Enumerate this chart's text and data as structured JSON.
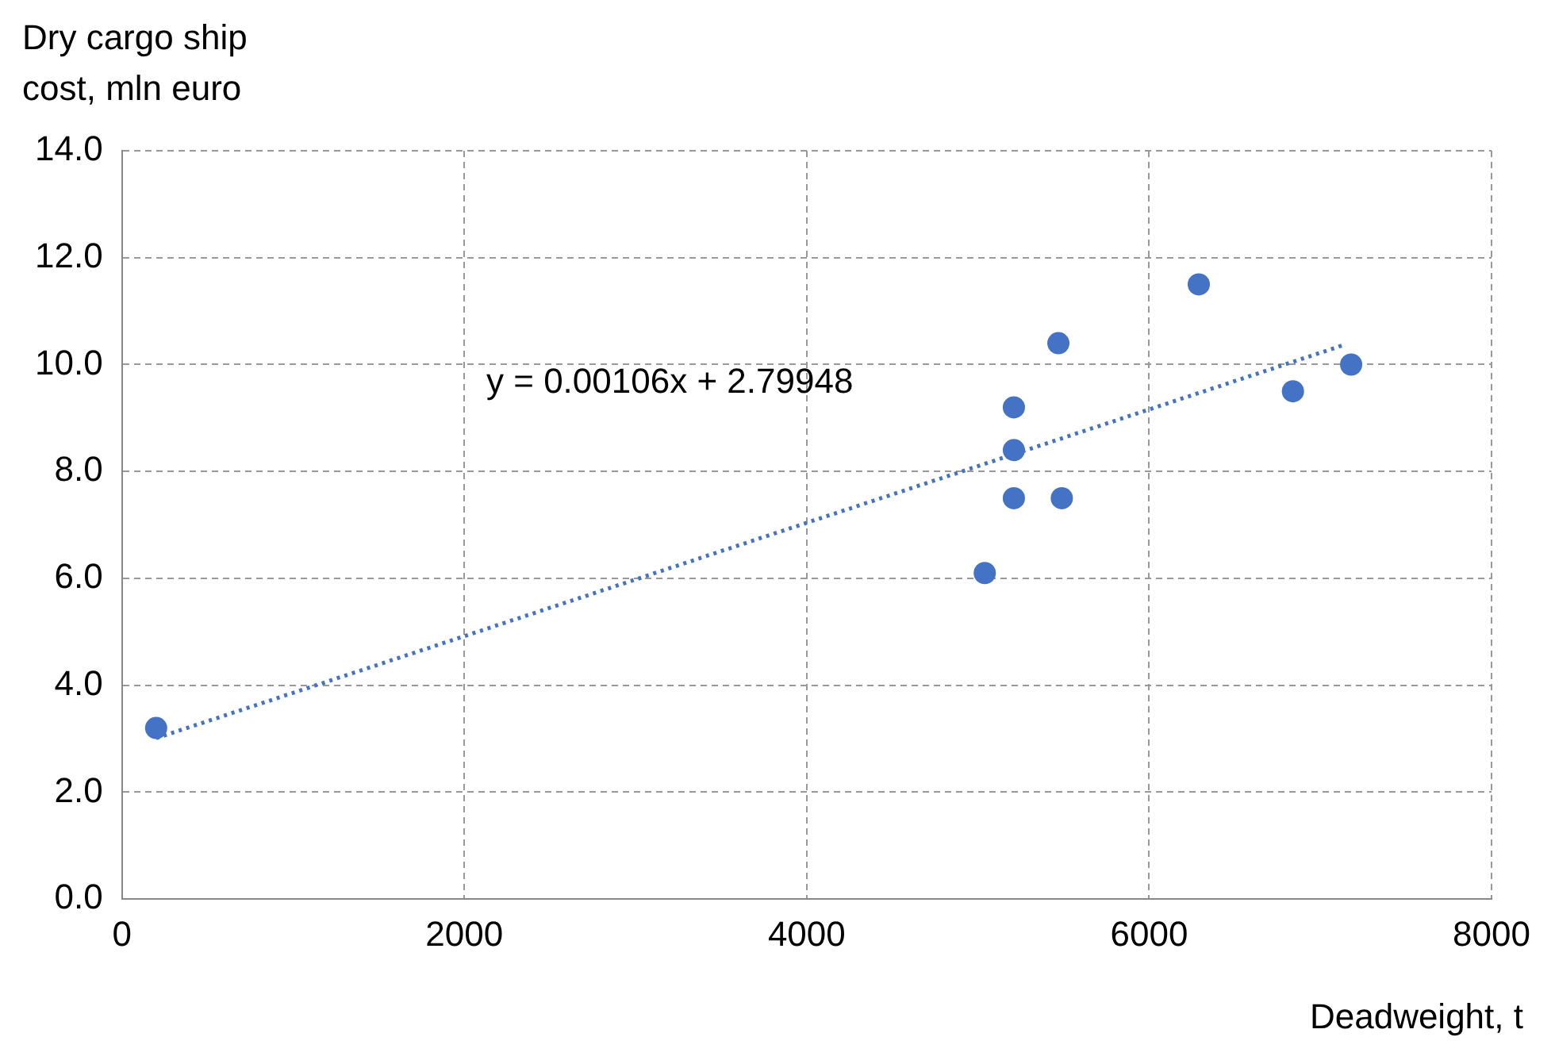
{
  "chart_data": {
    "type": "scatter",
    "ylabel": "Dry cargo ship cost, mln euro",
    "xlabel": "Deadweight, t",
    "xlim": [
      0,
      8000
    ],
    "xticks": [
      0,
      2000,
      4000,
      6000,
      8000
    ],
    "ylim": [
      0,
      14
    ],
    "yticks": [
      {
        "value": 0,
        "label": "0.0"
      },
      {
        "value": 2,
        "label": "2.0"
      },
      {
        "value": 4,
        "label": "4.0"
      },
      {
        "value": 6,
        "label": "6.0"
      },
      {
        "value": 8,
        "label": "8.0"
      },
      {
        "value": 10,
        "label": "10.0"
      },
      {
        "value": 12,
        "label": "12.0"
      },
      {
        "value": 14,
        "label": "14.0"
      }
    ],
    "grid": true,
    "legend": false,
    "marker": "circle",
    "annotations": [
      "y = 0.00106x + 2.79948"
    ],
    "series": [
      {
        "type": "scatter",
        "color": "#4472c4",
        "x": [
          200,
          5040,
          5210,
          5210,
          5210,
          5470,
          5490,
          6290,
          6840,
          7180
        ],
        "values": [
          3.2,
          6.1,
          9.2,
          8.4,
          7.5,
          10.4,
          7.5,
          11.5,
          9.5,
          10.0
        ]
      },
      {
        "type": "line",
        "color": "#4472c4",
        "line_style": "dotted",
        "marker": "none",
        "x": [
          200,
          7150
        ],
        "values": [
          3.01,
          10.38
        ]
      }
    ]
  }
}
